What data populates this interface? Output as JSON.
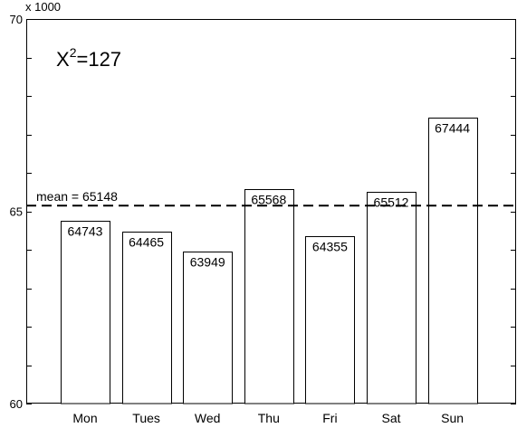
{
  "chart_data": {
    "type": "bar",
    "categories": [
      "Mon",
      "Tues",
      "Wed",
      "Thu",
      "Fri",
      "Sat",
      "Sun"
    ],
    "values": [
      64743,
      64465,
      63949,
      65568,
      64355,
      65512,
      67444
    ],
    "data_labels": [
      "64743",
      "64465",
      "63949",
      "65568",
      "64355",
      "65512",
      "67444"
    ],
    "ylim": [
      60000,
      70000
    ],
    "y_ticks": [
      60000,
      65000,
      70000
    ],
    "y_tick_labels": [
      "60",
      "65",
      "70"
    ],
    "y_minor_ticks": [
      61000,
      62000,
      63000,
      64000,
      66000,
      67000,
      68000,
      69000
    ],
    "y_multiplier_label": "x 1000",
    "mean": {
      "value": 65148,
      "label": "mean = 65148",
      "style": "dashed"
    },
    "annotation": {
      "base": "X",
      "superscript": "2",
      "rest": "=127"
    },
    "grid": false,
    "bar_fill": "#ffffff",
    "bar_stroke": "#000000"
  }
}
